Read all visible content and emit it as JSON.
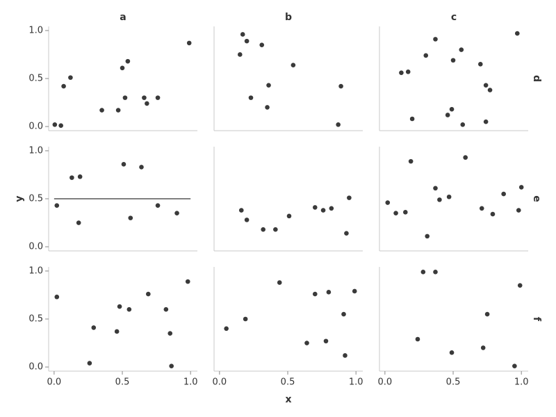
{
  "facets": {
    "columns": [
      "a",
      "b",
      "c"
    ],
    "rows": [
      "d",
      "e",
      "f"
    ],
    "x_label": "x",
    "y_label": "y",
    "xlim": [
      -0.04,
      1.05
    ],
    "xticks": [
      {
        "value": 0,
        "label": "0.0"
      },
      {
        "value": 0.5,
        "label": "0.5"
      },
      {
        "value": 1,
        "label": "1.0"
      }
    ],
    "ylim": [
      -0.043,
      1.043
    ],
    "yticks": [
      {
        "value": 0,
        "label": "0.0"
      },
      {
        "value": 0.5,
        "label": "0.5"
      },
      {
        "value": 1,
        "label": "1.0"
      }
    ],
    "point_color": "#3a3a3a",
    "axis_color": "#c8c8c8"
  },
  "chart_data": [
    {
      "type": "scatter",
      "x": [
        0.005,
        0.05,
        0.07,
        0.12,
        0.35,
        0.47,
        0.5,
        0.54,
        0.52,
        0.66,
        0.68,
        0.76,
        0.99
      ],
      "y": [
        0.02,
        0.01,
        0.42,
        0.51,
        0.17,
        0.17,
        0.61,
        0.68,
        0.3,
        0.3,
        0.24,
        0.3,
        0.87
      ]
    },
    {
      "type": "scatter",
      "x": [
        0.17,
        0.15,
        0.2,
        0.31,
        0.54,
        0.36,
        0.23,
        0.35,
        0.89,
        0.87
      ],
      "y": [
        0.96,
        0.75,
        0.89,
        0.85,
        0.64,
        0.43,
        0.3,
        0.2,
        0.42,
        0.02
      ]
    },
    {
      "type": "scatter",
      "x": [
        0.97,
        0.37,
        0.56,
        0.3,
        0.5,
        0.7,
        0.12,
        0.17,
        0.74,
        0.77,
        0.49,
        0.46,
        0.2,
        0.57,
        0.74
      ],
      "y": [
        0.97,
        0.91,
        0.8,
        0.74,
        0.69,
        0.65,
        0.56,
        0.57,
        0.43,
        0.38,
        0.18,
        0.12,
        0.08,
        0.02,
        0.05
      ]
    },
    {
      "type": "scatter",
      "x": [
        0.02,
        0.13,
        0.19,
        0.18,
        0.51,
        0.64,
        0.56,
        0.76,
        0.9
      ],
      "y": [
        0.43,
        0.72,
        0.73,
        0.25,
        0.86,
        0.83,
        0.3,
        0.43,
        0.35
      ],
      "hline": 0.5
    },
    {
      "type": "scatter",
      "x": [
        0.16,
        0.2,
        0.32,
        0.41,
        0.51,
        0.7,
        0.76,
        0.82,
        0.95,
        0.93
      ],
      "y": [
        0.38,
        0.28,
        0.18,
        0.18,
        0.32,
        0.41,
        0.38,
        0.4,
        0.51,
        0.14
      ]
    },
    {
      "type": "scatter",
      "x": [
        0.02,
        0.08,
        0.15,
        0.19,
        0.31,
        0.37,
        0.4,
        0.47,
        0.59,
        0.71,
        0.79,
        0.87,
        0.98,
        1.0
      ],
      "y": [
        0.46,
        0.35,
        0.36,
        0.89,
        0.11,
        0.61,
        0.49,
        0.52,
        0.93,
        0.4,
        0.34,
        0.55,
        0.38,
        0.62
      ]
    },
    {
      "type": "scatter",
      "x": [
        0.02,
        0.29,
        0.26,
        0.46,
        0.48,
        0.55,
        0.69,
        0.82,
        0.85,
        0.86,
        0.98
      ],
      "y": [
        0.73,
        0.41,
        0.04,
        0.37,
        0.63,
        0.6,
        0.76,
        0.6,
        0.35,
        0.01,
        0.89
      ]
    },
    {
      "type": "scatter",
      "x": [
        0.05,
        0.19,
        0.44,
        0.64,
        0.7,
        0.8,
        0.78,
        0.91,
        0.92,
        0.99
      ],
      "y": [
        0.4,
        0.5,
        0.88,
        0.25,
        0.76,
        0.78,
        0.27,
        0.55,
        0.12,
        0.79
      ]
    },
    {
      "type": "scatter",
      "x": [
        0.28,
        0.37,
        0.24,
        0.49,
        0.75,
        0.72,
        0.99,
        0.95
      ],
      "y": [
        0.99,
        0.99,
        0.29,
        0.15,
        0.55,
        0.2,
        0.85,
        0.01
      ]
    }
  ]
}
